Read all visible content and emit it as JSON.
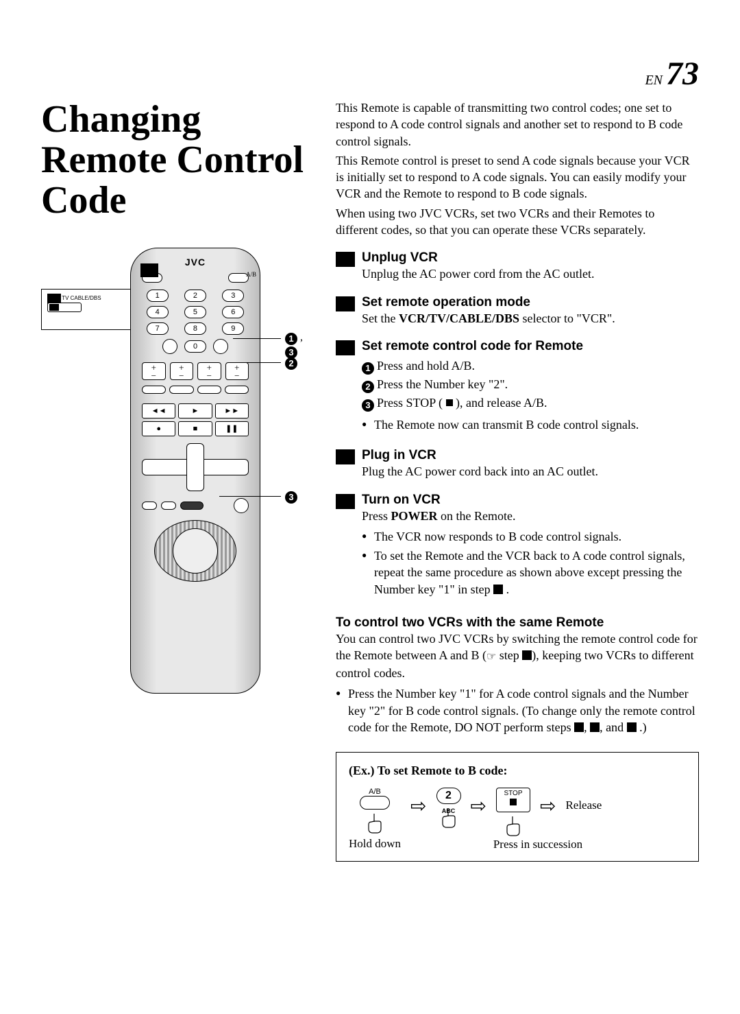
{
  "page": {
    "lang": "EN",
    "number": "73"
  },
  "title": "Changing Remote Control Code",
  "intro": [
    "This Remote is capable of transmitting two control codes; one set to respond to A code control signals and another set to respond to B code control signals.",
    "This Remote control is preset to send A code signals because your VCR is initially set to respond to A code signals. You can easily modify your VCR and the Remote to respond to B code signals.",
    "When using two JVC VCRs, set two VCRs and their Remotes to different codes, so that you can operate these VCRs separately."
  ],
  "steps": [
    {
      "title": "Unplug VCR",
      "text": "Unplug the AC power cord from the AC outlet."
    },
    {
      "title": "Set remote operation mode",
      "text_parts": [
        "Set the ",
        {
          "b": "VCR/TV/CABLE/DBS"
        },
        " selector to \"VCR\"."
      ]
    },
    {
      "title": "Set remote control code for Remote",
      "subs": [
        {
          "n": "1",
          "parts": [
            "Press and hold ",
            {
              "b": "A/B"
            },
            "."
          ]
        },
        {
          "n": "2",
          "parts": [
            "Press the ",
            {
              "b": "Number"
            },
            " key \"",
            {
              "b": "2"
            },
            "\"."
          ]
        },
        {
          "n": "3",
          "parts": [
            "Press ",
            {
              "b": "STOP"
            },
            " ( ",
            {
              "stop": true
            },
            " ), and release ",
            {
              "b": "A/B"
            },
            "."
          ]
        }
      ],
      "bullets": [
        "The Remote now can transmit B code control signals."
      ]
    },
    {
      "title": "Plug in VCR",
      "text": "Plug the AC power cord back into an AC outlet."
    },
    {
      "title": "Turn on VCR",
      "text_parts": [
        "Press ",
        {
          "b": "POWER"
        },
        " on the Remote."
      ],
      "bullets": [
        "The VCR now responds to B code control signals.",
        {
          "parts": [
            "To set the Remote and the VCR back to A code control signals, repeat the same procedure as shown above except pressing the ",
            {
              "b": "Number"
            },
            " key \"",
            {
              "b": "1"
            },
            "\" in step ",
            {
              "sq": true
            },
            " ."
          ]
        }
      ]
    }
  ],
  "two_vcr": {
    "title": "To control two VCRs with the same Remote",
    "p_parts": [
      "You can control two JVC VCRs by switching the remote control code for the Remote between A and B (",
      {
        "ref": true
      },
      " step ",
      {
        "sq": true
      },
      "), keeping two VCRs to different control codes."
    ],
    "bullet_parts": [
      "Press the ",
      {
        "b": "Number"
      },
      " key \"",
      {
        "b": "1"
      },
      "\" for A code control signals and the ",
      {
        "b": "Number"
      },
      " key \"",
      {
        "b": "2"
      },
      "\" for B code control signals. (To change only the remote control code for the Remote, DO NOT perform steps ",
      {
        "sq": true
      },
      ", ",
      {
        "sq": true
      },
      ", and ",
      {
        "sq": true
      },
      " .)"
    ]
  },
  "example": {
    "title": "(Ex.)  To set Remote to B code:",
    "ab_label": "A/B",
    "num_label": "2",
    "num_sub": "ABC",
    "stop_label": "STOP",
    "release": "Release",
    "hold": "Hold down",
    "press": "Press in succession"
  },
  "remote": {
    "logo": "JVC",
    "selector_label": "VCR  TV CABLE/DBS",
    "callouts": {
      "c13": ", ",
      "c1": "1",
      "c3b": "3",
      "c2": "2",
      "c3": "3"
    }
  }
}
